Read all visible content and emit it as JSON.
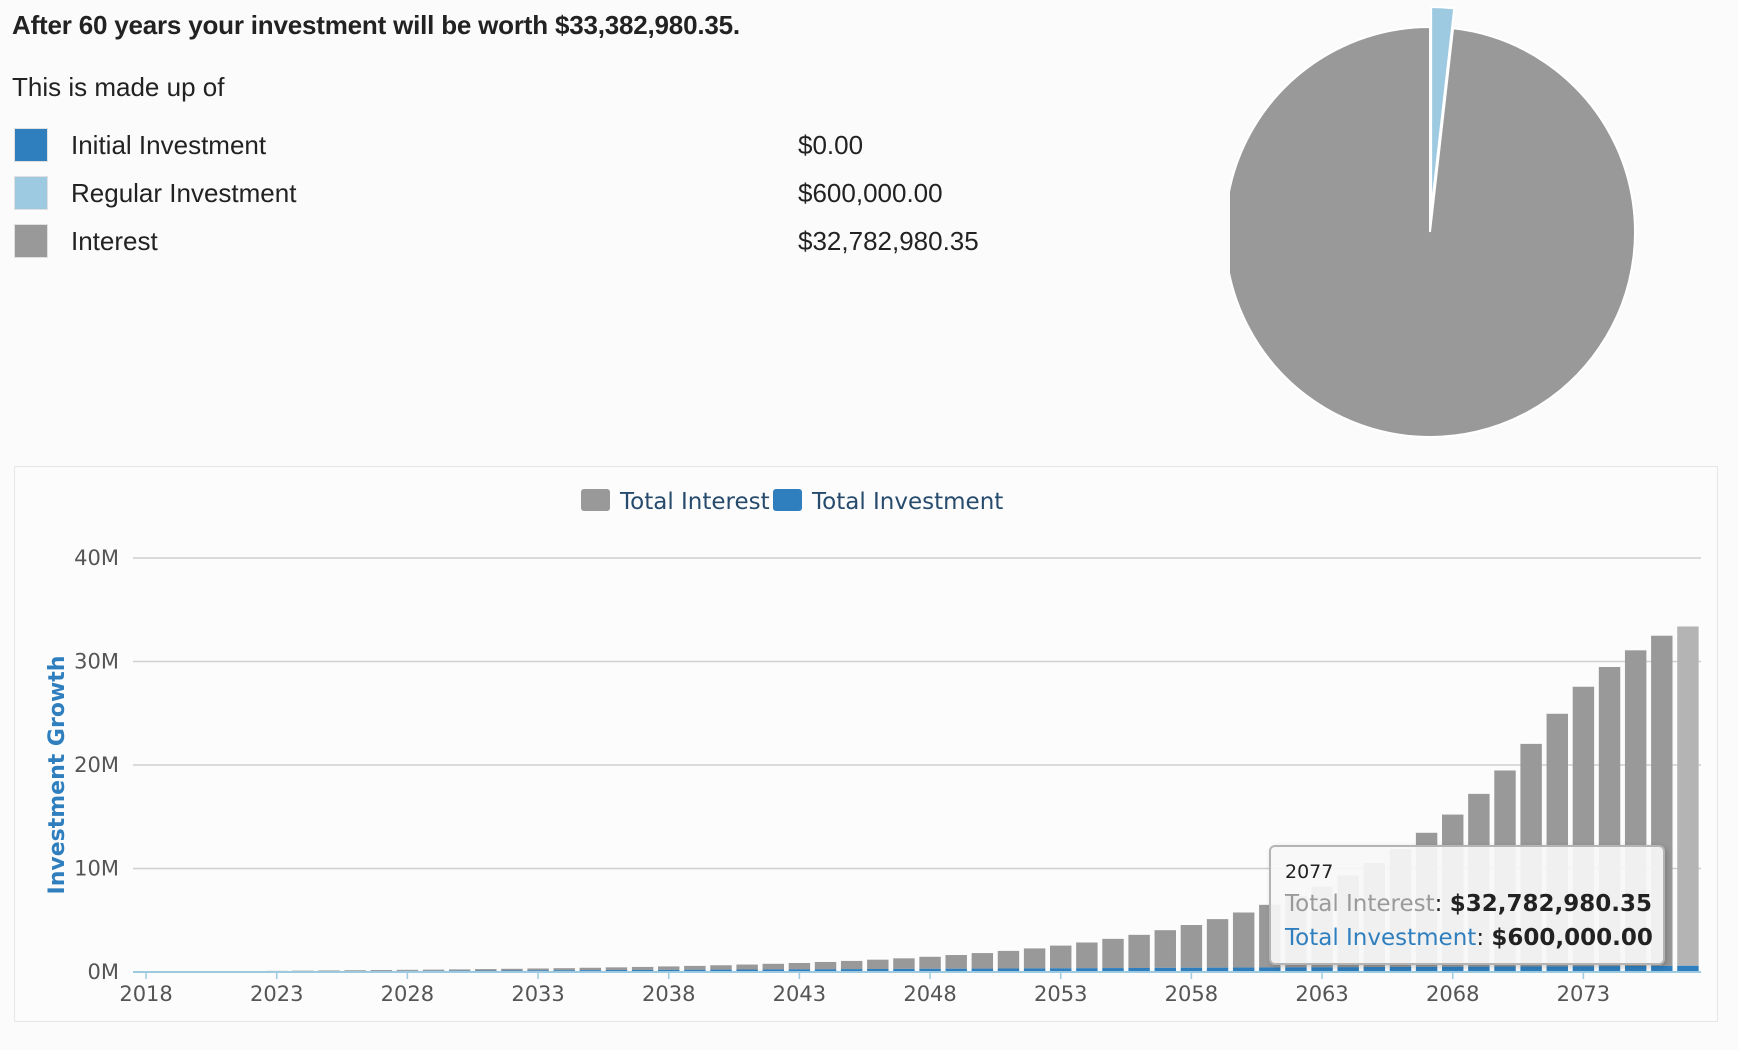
{
  "summary": {
    "headline": "After 60 years your investment will be worth $33,382,980.35.",
    "made_up_of": "This is made up of",
    "items": [
      {
        "label": "Initial Investment",
        "value": "$0.00",
        "color": "#2f7fbf"
      },
      {
        "label": "Regular Investment",
        "value": "$600,000.00",
        "color": "#9ecae1"
      },
      {
        "label": "Interest",
        "value": "$32,782,980.35",
        "color": "#999999"
      }
    ]
  },
  "colors": {
    "interest": "#999999",
    "interest_hover": "#b4b4b4",
    "investment": "#2f7fbf",
    "regular": "#9ecae1",
    "axis_title": "#2f7fbf",
    "grid": "#cfcfcf"
  },
  "chart_data": [
    {
      "type": "pie",
      "slices": [
        {
          "name": "Initial Investment",
          "value": 0
        },
        {
          "name": "Regular Investment",
          "value": 600000
        },
        {
          "name": "Interest",
          "value": 32782980.35
        }
      ]
    },
    {
      "type": "bar",
      "stacked": true,
      "legend": [
        "Total Interest",
        "Total Investment"
      ],
      "legend_position": "top-center",
      "ylabel": "Investment Growth",
      "ylim": [
        0,
        40000000
      ],
      "y_ticks": [
        "0M",
        "10M",
        "20M",
        "30M",
        "40M"
      ],
      "y_tick_values": [
        0,
        10000000,
        20000000,
        30000000,
        40000000
      ],
      "x_tick_labels": [
        "2018",
        "2023",
        "2028",
        "2033",
        "2038",
        "2043",
        "2048",
        "2053",
        "2058",
        "2063",
        "2068",
        "2073"
      ],
      "x": [
        2018,
        2019,
        2020,
        2021,
        2022,
        2023,
        2024,
        2025,
        2026,
        2027,
        2028,
        2029,
        2030,
        2031,
        2032,
        2033,
        2034,
        2035,
        2036,
        2037,
        2038,
        2039,
        2040,
        2041,
        2042,
        2043,
        2044,
        2045,
        2046,
        2047,
        2048,
        2049,
        2050,
        2051,
        2052,
        2053,
        2054,
        2055,
        2056,
        2057,
        2058,
        2059,
        2060,
        2061,
        2062,
        2063,
        2064,
        2065,
        2066,
        2067,
        2068,
        2069,
        2070,
        2071,
        2072,
        2073,
        2074,
        2075,
        2076,
        2077
      ],
      "series": [
        {
          "name": "Total Interest",
          "values": [
            0,
            10000,
            20000,
            30000,
            40000,
            50000,
            60000,
            70000,
            80000,
            90000,
            100000,
            110000,
            120000,
            140000,
            160000,
            180000,
            200000,
            230000,
            260000,
            290000,
            330000,
            370000,
            420000,
            480000,
            540000,
            610000,
            700000,
            790000,
            900000,
            1020000,
            1160000,
            1320000,
            1500000,
            1700000,
            1930000,
            2190000,
            2480000,
            2820000,
            3200000,
            3640000,
            4130000,
            4690000,
            5320000,
            6050000,
            6870000,
            7800000,
            8850000,
            10050000,
            11400000,
            12950000,
            14700000,
            16690000,
            18940000,
            21500000,
            24400000,
            27000000,
            28900000,
            30500000,
            31900000,
            32782980.35
          ]
        },
        {
          "name": "Total Investment",
          "values": [
            10000,
            20000,
            30000,
            40000,
            50000,
            60000,
            70000,
            80000,
            90000,
            100000,
            110000,
            120000,
            130000,
            140000,
            150000,
            160000,
            170000,
            180000,
            190000,
            200000,
            210000,
            220000,
            230000,
            240000,
            250000,
            260000,
            270000,
            280000,
            290000,
            300000,
            310000,
            320000,
            330000,
            340000,
            350000,
            360000,
            370000,
            380000,
            390000,
            400000,
            410000,
            420000,
            430000,
            440000,
            450000,
            460000,
            470000,
            480000,
            490000,
            500000,
            510000,
            520000,
            530000,
            540000,
            550000,
            560000,
            570000,
            580000,
            590000,
            600000
          ]
        }
      ],
      "tooltip": {
        "year": "2077",
        "interest_label": "Total Interest",
        "interest_value": "$32,782,980.35",
        "investment_label": "Total Investment",
        "investment_value": "$600,000.00"
      }
    }
  ]
}
